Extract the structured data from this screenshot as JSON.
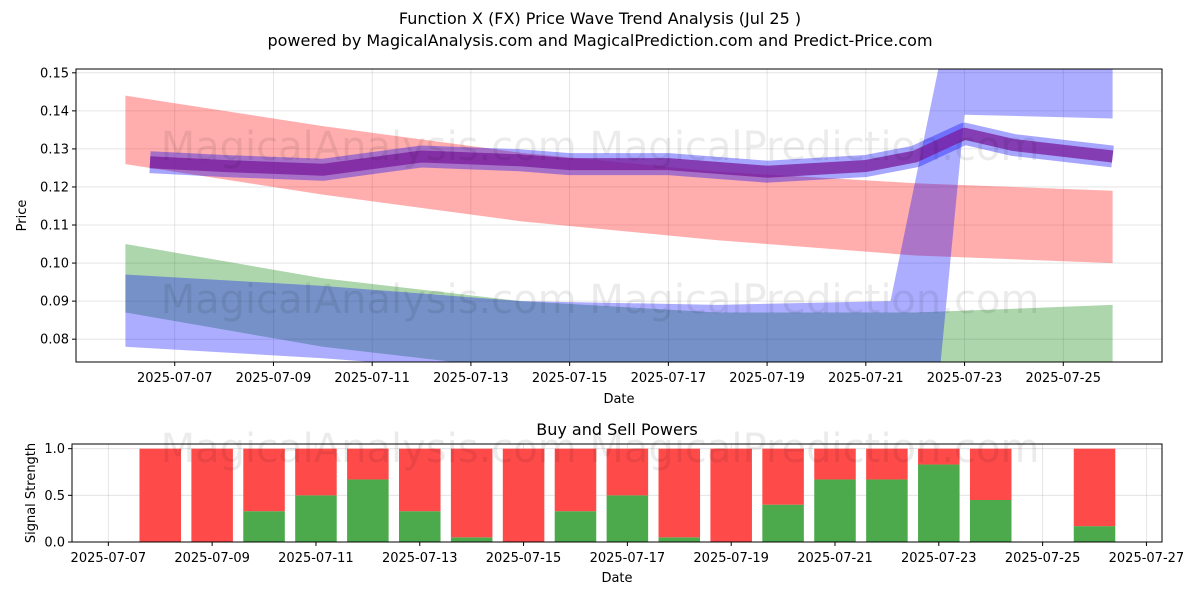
{
  "header": {
    "title": "Function X (FX) Price Wave Trend Analysis (Jul 25 )",
    "subtitle": "powered by MagicalAnalysis.com and MagicalPrediction.com and Predict-Price.com"
  },
  "watermark": "MagicalAnalysis.com    MagicalPrediction.com",
  "colors": {
    "red": "#ff0000",
    "green": "#008000",
    "blue": "#0000ff",
    "purple": "#7a1a9a",
    "buy": "#4caa4c",
    "sell": "#ff4a4a"
  },
  "chart_data": [
    {
      "type": "area",
      "xlabel": "Date",
      "ylabel": "Price",
      "xlim": [
        "2025-07-05",
        "2025-07-27"
      ],
      "ylim": [
        0.074,
        0.151
      ],
      "yticks": [
        0.08,
        0.09,
        0.1,
        0.11,
        0.12,
        0.13,
        0.14,
        0.15
      ],
      "xticks": [
        "2025-07-07",
        "2025-07-09",
        "2025-07-11",
        "2025-07-13",
        "2025-07-15",
        "2025-07-17",
        "2025-07-19",
        "2025-07-21",
        "2025-07-23",
        "2025-07-25"
      ],
      "grid": true,
      "series": [
        {
          "color": "red",
          "kind": "band",
          "x": [
            "2025-07-06",
            "2025-07-10",
            "2025-07-14",
            "2025-07-18",
            "2025-07-22",
            "2025-07-26"
          ],
          "upper": [
            0.144,
            0.136,
            0.129,
            0.124,
            0.121,
            0.119
          ],
          "lower": [
            0.126,
            0.118,
            0.111,
            0.106,
            0.102,
            0.1
          ]
        },
        {
          "color": "green",
          "kind": "band",
          "x": [
            "2025-07-06",
            "2025-07-10",
            "2025-07-14",
            "2025-07-18",
            "2025-07-22",
            "2025-07-26"
          ],
          "upper": [
            0.105,
            0.096,
            0.09,
            0.087,
            0.087,
            0.089
          ],
          "lower": [
            0.087,
            0.078,
            0.072,
            0.069,
            0.069,
            0.071
          ]
        },
        {
          "color": "blue",
          "kind": "band",
          "x": [
            "2025-07-06",
            "2025-07-10",
            "2025-07-14",
            "2025-07-18",
            "2025-07-21.5",
            "2025-07-22.5",
            "2025-07-23",
            "2025-07-26"
          ],
          "upper": [
            0.097,
            0.094,
            0.09,
            0.089,
            0.09,
            0.153,
            0.153,
            0.152
          ],
          "lower": [
            0.078,
            0.075,
            0.071,
            0.07,
            0.07,
            0.072,
            0.139,
            0.138
          ]
        },
        {
          "color": "purple",
          "kind": "line",
          "x": [
            "2025-07-06.5",
            "2025-07-08",
            "2025-07-10",
            "2025-07-12",
            "2025-07-14",
            "2025-07-15",
            "2025-07-17",
            "2025-07-19",
            "2025-07-21",
            "2025-07-22",
            "2025-07-23",
            "2025-07-24",
            "2025-07-26"
          ],
          "y": [
            0.1265,
            0.1255,
            0.1245,
            0.128,
            0.127,
            0.126,
            0.126,
            0.124,
            0.1255,
            0.128,
            0.134,
            0.131,
            0.128
          ]
        }
      ]
    },
    {
      "type": "bar",
      "title": "Buy and Sell Powers",
      "xlabel": "Date",
      "ylabel": "Signal Strength",
      "xlim": [
        "2025-07-06.3",
        "2025-07-27.3"
      ],
      "ylim": [
        0,
        1.05
      ],
      "yticks": [
        0.0,
        0.5,
        1.0
      ],
      "xticks": [
        "2025-07-07",
        "2025-07-09",
        "2025-07-11",
        "2025-07-13",
        "2025-07-15",
        "2025-07-17",
        "2025-07-19",
        "2025-07-21",
        "2025-07-23",
        "2025-07-25",
        "2025-07-27"
      ],
      "grid": true,
      "dates": [
        "2025-07-08",
        "2025-07-09",
        "2025-07-10",
        "2025-07-11",
        "2025-07-12",
        "2025-07-13",
        "2025-07-14",
        "2025-07-15",
        "2025-07-16",
        "2025-07-17",
        "2025-07-18",
        "2025-07-19",
        "2025-07-20",
        "2025-07-21",
        "2025-07-22",
        "2025-07-23",
        "2025-07-24",
        "2025-07-26"
      ],
      "series": [
        {
          "name": "Buy",
          "values": [
            0,
            0,
            0.33,
            0.5,
            0.67,
            0.33,
            0.05,
            0,
            0.33,
            0.5,
            0.05,
            0,
            0.4,
            0.67,
            0.67,
            0.83,
            0.45,
            0.17
          ]
        },
        {
          "name": "Sell",
          "values": [
            1,
            1,
            0.67,
            0.5,
            0.33,
            0.67,
            0.95,
            1,
            0.67,
            0.5,
            0.95,
            1,
            0.6,
            0.33,
            0.33,
            0.17,
            0.55,
            0.83
          ]
        }
      ]
    }
  ]
}
